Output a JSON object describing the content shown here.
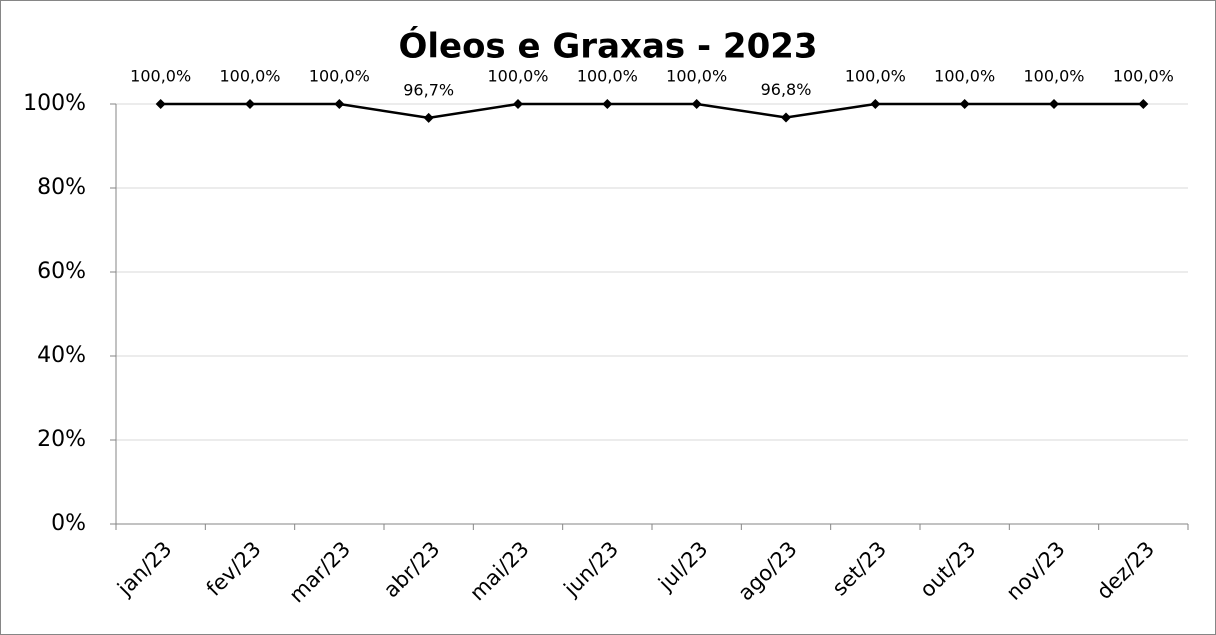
{
  "chart_data": {
    "type": "line",
    "title": "Óleos e Graxas - 2023",
    "categories": [
      "jan/23",
      "fev/23",
      "mar/23",
      "abr/23",
      "mai/23",
      "jun/23",
      "jul/23",
      "ago/23",
      "set/23",
      "out/23",
      "nov/23",
      "dez/23"
    ],
    "values": [
      100,
      100,
      100,
      96.7,
      100,
      100,
      100,
      96.8,
      100,
      100,
      100,
      100
    ],
    "value_labels": [
      "100,0%",
      "100,0%",
      "100,0%",
      "96,7%",
      "100,0%",
      "100,0%",
      "100,0%",
      "96,8%",
      "100,0%",
      "100,0%",
      "100,0%",
      "100,0%"
    ],
    "color": "#000000",
    "ylim": [
      0,
      100
    ],
    "yticks": [
      {
        "value": 0,
        "label": "0%"
      },
      {
        "value": 20,
        "label": "20%"
      },
      {
        "value": 40,
        "label": "40%"
      },
      {
        "value": 60,
        "label": "60%"
      },
      {
        "value": 80,
        "label": "80%"
      },
      {
        "value": 100,
        "label": "100%"
      }
    ],
    "grid": true
  }
}
